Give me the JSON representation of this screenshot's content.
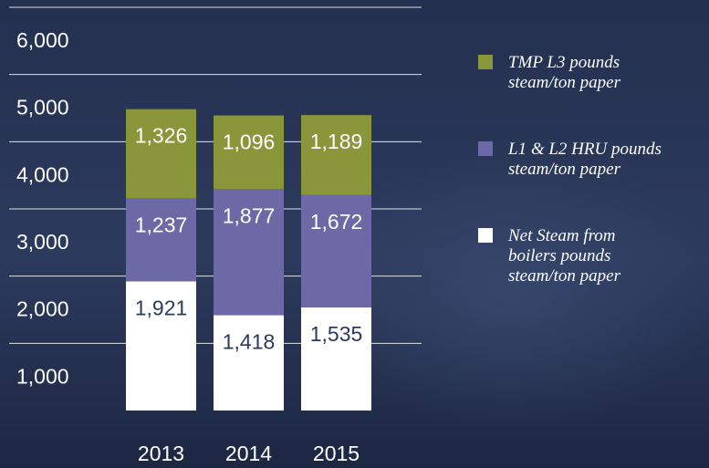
{
  "chart_data": {
    "type": "stacked_bar",
    "categories": [
      "2013",
      "2014",
      "2015"
    ],
    "series": [
      {
        "name": "Net Steam from boilers pounds steam/ton paper",
        "color": "#ffffff",
        "label_color": "#2b3a5c",
        "values": [
          1921,
          1418,
          1535
        ],
        "value_labels": [
          "1,921",
          "1,418",
          "1,535"
        ]
      },
      {
        "name": "L1 & L2 HRU pounds steam/ton paper",
        "color": "#6d68a6",
        "label_color": "#ffffff",
        "values": [
          1237,
          1877,
          1672
        ],
        "value_labels": [
          "1,237",
          "1,877",
          "1,672"
        ]
      },
      {
        "name": "TMP L3 pounds steam/ton paper",
        "color": "#8a963a",
        "label_color": "#ffffff",
        "values": [
          1326,
          1096,
          1189
        ],
        "value_labels": [
          "1,326",
          "1,096",
          "1,189"
        ]
      }
    ],
    "ylim": [
      0,
      6000
    ],
    "yticks": [
      {
        "value": 1000,
        "label": "1,000"
      },
      {
        "value": 2000,
        "label": "2,000"
      },
      {
        "value": 3000,
        "label": "3,000"
      },
      {
        "value": 4000,
        "label": "4,000"
      },
      {
        "value": 5000,
        "label": "5,000"
      },
      {
        "value": 6000,
        "label": "6,000"
      }
    ],
    "grid": true
  }
}
